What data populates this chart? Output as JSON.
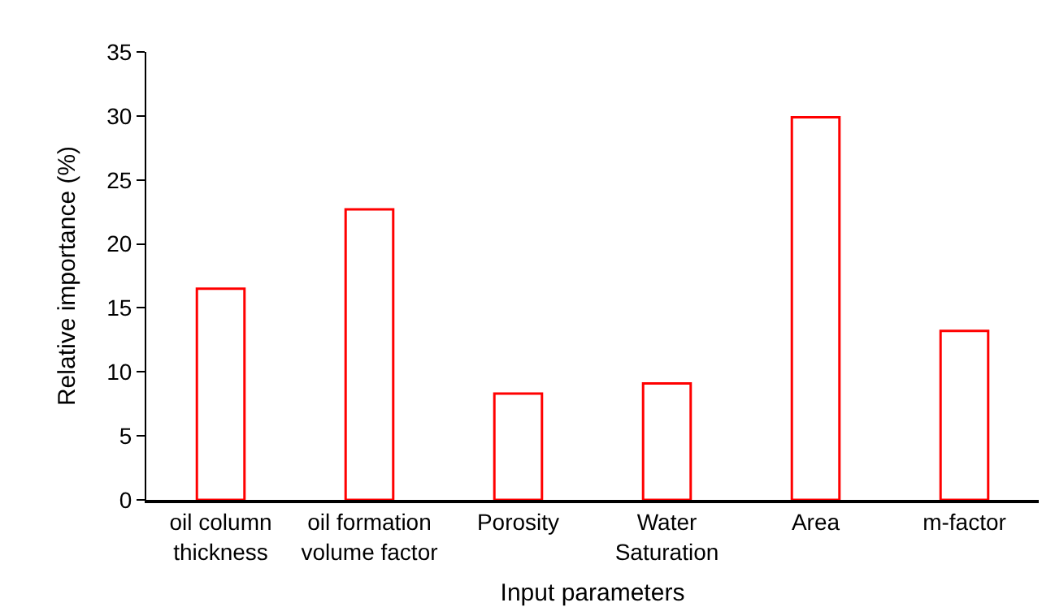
{
  "chart_data": {
    "type": "bar",
    "xlabel": "Input parameters",
    "ylabel": "Relative importance (%)",
    "categories": [
      "oil column thickness",
      "oil formation volume factor",
      "Porosity",
      "Water Saturation",
      "Area",
      "m-factor"
    ],
    "values": [
      16.5,
      22.7,
      8.3,
      9.1,
      29.9,
      13.2
    ],
    "color": "#ff0000",
    "ylim": [
      0,
      35
    ],
    "yticks": [
      0,
      5,
      10,
      15,
      20,
      25,
      30,
      35
    ]
  }
}
